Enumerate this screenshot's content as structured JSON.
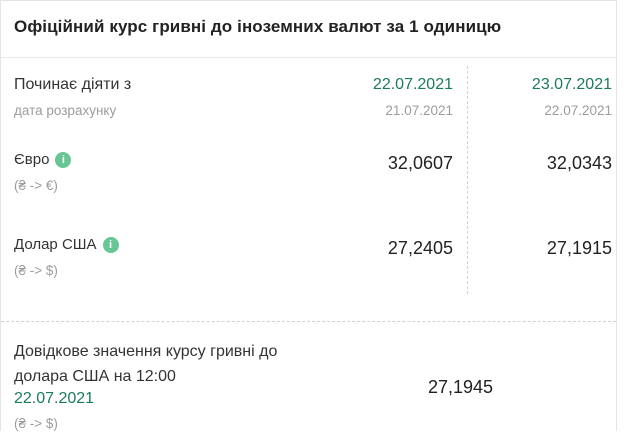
{
  "header": {
    "title": "Офіційний курс гривні до іноземних валют за 1 одиницю"
  },
  "table": {
    "effective_label": "Починає діяти з",
    "calc_label": "дата розрахунку",
    "columns": [
      {
        "effective_date": "22.07.2021",
        "calc_date": "21.07.2021"
      },
      {
        "effective_date": "23.07.2021",
        "calc_date": "22.07.2021"
      }
    ],
    "rows": [
      {
        "name": "Євро",
        "pair": "(₴ -> €)",
        "values": [
          "32,0607",
          "32,0343"
        ]
      },
      {
        "name": "Долар США",
        "pair": "(₴ -> $)",
        "values": [
          "27,2405",
          "27,1915"
        ]
      }
    ]
  },
  "reference": {
    "title_line1": "Довідкове значення курсу гривні до",
    "title_line2": "долара США на 12:00",
    "date": "22.07.2021",
    "pair": "(₴ -> $)",
    "value": "27,1945"
  },
  "icons": {
    "info": "i"
  },
  "colors": {
    "date_green": "#1b7a5e",
    "info_icon_green": "#66c694",
    "value_dark": "#222222",
    "muted_gray": "#9c9c9c"
  }
}
